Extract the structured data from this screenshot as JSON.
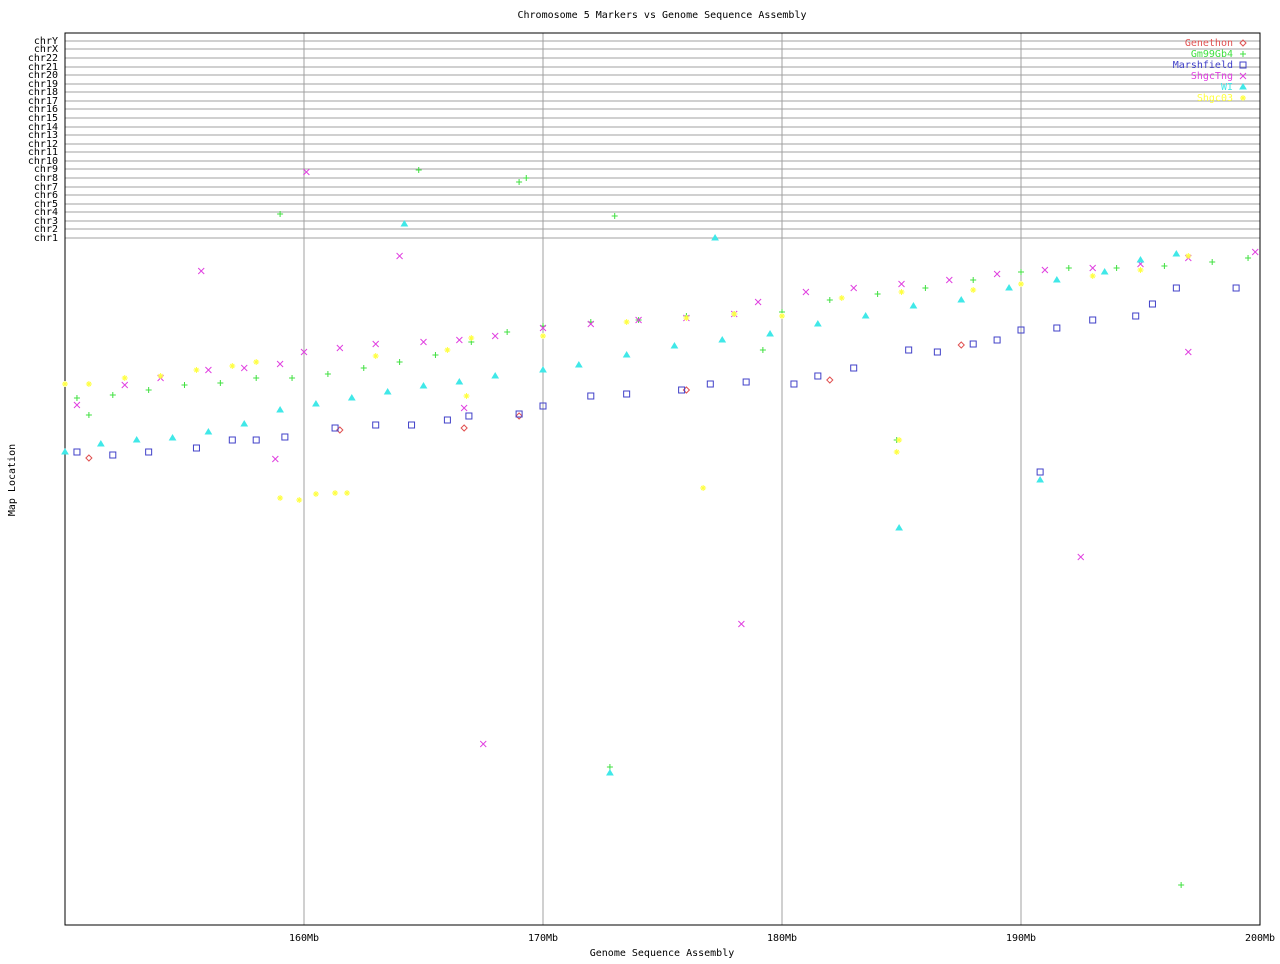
{
  "chart_data": {
    "type": "scatter",
    "title": "Chromosome 5 Markers vs Genome Sequence Assembly",
    "xlabel": "Genome Sequence Assembly",
    "ylabel": "Map Location",
    "xlim": [
      150,
      200
    ],
    "xticks": [
      {
        "value": 160,
        "label": "160Mb"
      },
      {
        "value": 170,
        "label": "170Mb"
      },
      {
        "value": 180,
        "label": "180Mb"
      },
      {
        "value": 190,
        "label": "190Mb"
      },
      {
        "value": 200,
        "label": "200Mb"
      }
    ],
    "ylim": [
      0,
      892
    ],
    "yticks": [
      {
        "value": 687,
        "label": "chr1"
      },
      {
        "value": 696,
        "label": "chr2"
      },
      {
        "value": 704,
        "label": "chr3"
      },
      {
        "value": 713,
        "label": "chr4"
      },
      {
        "value": 721,
        "label": "chr5"
      },
      {
        "value": 730,
        "label": "chr6"
      },
      {
        "value": 738,
        "label": "chr7"
      },
      {
        "value": 747,
        "label": "chr8"
      },
      {
        "value": 756,
        "label": "chr9"
      },
      {
        "value": 764,
        "label": "chr10"
      },
      {
        "value": 773,
        "label": "chr11"
      },
      {
        "value": 781,
        "label": "chr12"
      },
      {
        "value": 790,
        "label": "chr13"
      },
      {
        "value": 798,
        "label": "chr14"
      },
      {
        "value": 807,
        "label": "chr15"
      },
      {
        "value": 816,
        "label": "chr16"
      },
      {
        "value": 824,
        "label": "chr17"
      },
      {
        "value": 833,
        "label": "chr18"
      },
      {
        "value": 841,
        "label": "chr19"
      },
      {
        "value": 850,
        "label": "chr20"
      },
      {
        "value": 858,
        "label": "chr21"
      },
      {
        "value": 867,
        "label": "chr22"
      },
      {
        "value": 876,
        "label": "chrX"
      },
      {
        "value": 884,
        "label": "chrY"
      }
    ],
    "grid": true,
    "legend": "upper right",
    "series": [
      {
        "name": "Genethon",
        "color": "#e05050",
        "marker": "diamond",
        "x": [
          151,
          161.5,
          166.7,
          169,
          176,
          182,
          187.5
        ],
        "values": [
          467,
          495,
          497,
          509,
          535,
          545,
          580
        ]
      },
      {
        "name": "Gm99Gb4",
        "color": "#40e040",
        "marker": "plus",
        "x": [
          150.5,
          152,
          153.5,
          155,
          156.5,
          158,
          159.5,
          161,
          162.5,
          164,
          165.5,
          167,
          168.5,
          170,
          172,
          174,
          176,
          178,
          180,
          182,
          184,
          186,
          188,
          190,
          192,
          194,
          196,
          198,
          199.5,
          159,
          164.8,
          169,
          169.3,
          173,
          172.8,
          196.7,
          151,
          179.2,
          184.8
        ],
        "values": [
          527,
          530,
          535,
          540,
          542,
          547,
          547,
          551,
          557,
          563,
          570,
          583,
          593,
          599,
          603,
          605,
          609,
          611,
          613,
          625,
          631,
          637,
          645,
          653,
          657,
          657,
          659,
          663,
          667,
          711,
          755,
          743,
          747,
          709,
          158,
          40,
          510,
          575,
          485
        ]
      },
      {
        "name": "Marshfield",
        "color": "#4040c8",
        "marker": "square",
        "x": [
          150.5,
          152,
          153.5,
          155.5,
          157,
          158,
          159.2,
          161.3,
          163,
          164.5,
          166,
          166.9,
          169,
          170,
          172,
          173.5,
          175.8,
          177,
          178.5,
          180.5,
          181.5,
          183,
          185.3,
          186.5,
          188,
          189,
          190,
          191.5,
          193,
          194.8,
          195.5,
          196.5,
          199,
          190.8
        ],
        "values": [
          473,
          470,
          473,
          477,
          485,
          485,
          488,
          497,
          500,
          500,
          505,
          509,
          511,
          519,
          529,
          531,
          535,
          541,
          543,
          541,
          549,
          557,
          575,
          573,
          581,
          585,
          595,
          597,
          605,
          609,
          621,
          637,
          637,
          453
        ]
      },
      {
        "name": "ShgcTng",
        "color": "#e040e0",
        "marker": "x",
        "x": [
          150.5,
          152.5,
          154,
          156,
          157.5,
          159,
          160,
          161.5,
          163,
          165,
          166.5,
          168,
          170,
          172,
          174,
          176,
          178,
          179,
          181,
          183,
          185,
          187,
          189,
          191,
          193,
          195,
          197,
          199.8,
          160.1,
          155.7,
          164,
          158.8,
          167.5,
          178.3,
          192.5,
          197,
          166.7
        ],
        "values": [
          520,
          540,
          547,
          555,
          557,
          561,
          573,
          577,
          581,
          583,
          585,
          589,
          597,
          601,
          605,
          607,
          611,
          623,
          633,
          637,
          641,
          645,
          651,
          655,
          657,
          661,
          667,
          673,
          753,
          654,
          669,
          466,
          181,
          301,
          368,
          573,
          517
        ]
      },
      {
        "name": "WI",
        "color": "#40e8e8",
        "marker": "triangle",
        "x": [
          150,
          151.5,
          153,
          154.5,
          156,
          157.5,
          159,
          160.5,
          162,
          163.5,
          165,
          166.5,
          168,
          170,
          171.5,
          173.5,
          175.5,
          177.5,
          179.5,
          181.5,
          183.5,
          185.5,
          187.5,
          189.5,
          191.5,
          193.5,
          195,
          196.5,
          164.2,
          177.2,
          172.8,
          184.9,
          190.8
        ],
        "values": [
          473,
          481,
          485,
          487,
          493,
          501,
          515,
          521,
          527,
          533,
          539,
          543,
          549,
          555,
          560,
          570,
          579,
          585,
          591,
          601,
          609,
          619,
          625,
          637,
          645,
          653,
          665,
          671,
          701,
          687,
          152,
          397,
          445
        ]
      },
      {
        "name": "Shgc03",
        "color": "#ffff40",
        "marker": "star",
        "x": [
          150,
          151,
          152.5,
          154,
          155.5,
          157,
          158,
          163,
          166,
          167,
          170,
          173.5,
          176,
          178,
          180,
          182.5,
          185,
          188,
          190,
          193,
          195,
          197,
          159,
          159.8,
          160.5,
          161.3,
          161.8,
          166.8,
          176.7,
          184.8,
          184.9
        ],
        "values": [
          541,
          541,
          547,
          549,
          555,
          559,
          563,
          569,
          575,
          587,
          589,
          603,
          607,
          611,
          609,
          627,
          633,
          635,
          641,
          649,
          655,
          669,
          427,
          425,
          431,
          432,
          432,
          529,
          437,
          473,
          485
        ]
      }
    ]
  }
}
